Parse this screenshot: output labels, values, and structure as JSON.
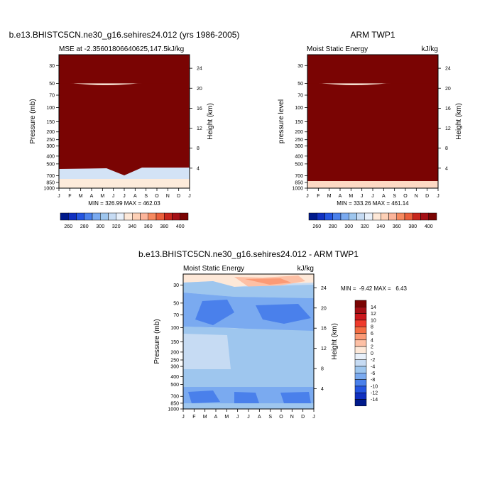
{
  "chart_data": [
    {
      "type": "heatmap",
      "title": "b.e13.BHISTC5CN.ne30_g16.sehires24.012 (yrs 1986-2005)",
      "subtitle_left": "MSE at -2.35601806640625,147.5",
      "subtitle_right": "kJ/kg",
      "ylabel": "Pressure (mb)",
      "y2label": "Height (km)",
      "x_ticks": [
        "J",
        "F",
        "M",
        "A",
        "M",
        "J",
        "J",
        "A",
        "S",
        "O",
        "N",
        "D",
        "J"
      ],
      "y_ticks": [
        30,
        50,
        70,
        100,
        150,
        200,
        250,
        300,
        400,
        500,
        700,
        850,
        1000
      ],
      "height_ticks": [
        4,
        8,
        12,
        16,
        20,
        24
      ],
      "stats": "MIN = 326.99 MAX = 462.03",
      "colorbar_ticks": [
        260,
        280,
        300,
        320,
        340,
        360,
        380,
        400
      ],
      "levels": [
        [
          700,
          "#d3e3f6"
        ],
        [
          600,
          "#fdebdb"
        ],
        [
          250,
          "#fde8d8"
        ],
        [
          150,
          "#fdd0b6"
        ],
        [
          100,
          "#fbb49a"
        ],
        [
          75,
          "#f6895f"
        ],
        [
          65,
          "#ea5f3b"
        ],
        [
          56,
          "#c7261c"
        ],
        [
          50,
          "#7a0403"
        ]
      ]
    },
    {
      "type": "heatmap",
      "title": "ARM TWP1",
      "subtitle_left": "Moist Static Energy",
      "subtitle_right": "kJ/kg",
      "ylabel": "pressure level",
      "y2label": "Height (km)",
      "x_ticks": [
        "J",
        "F",
        "M",
        "A",
        "M",
        "J",
        "J",
        "A",
        "S",
        "O",
        "N",
        "D",
        "J"
      ],
      "y_ticks": [
        30,
        50,
        70,
        100,
        150,
        200,
        250,
        300,
        400,
        500,
        700,
        850,
        1000
      ],
      "height_ticks": [
        4,
        8,
        12,
        16,
        20,
        24
      ],
      "stats": "MIN = 333.26 MAX = 461.14",
      "colorbar_ticks": [
        260,
        280,
        300,
        320,
        340,
        360,
        380,
        400
      ],
      "levels": [
        [
          850,
          "#fdd9c4"
        ],
        [
          600,
          "#fdebdb"
        ],
        [
          320,
          "#fde8d8"
        ],
        [
          160,
          "#fdd0b6"
        ],
        [
          100,
          "#fbb49a"
        ],
        [
          75,
          "#f6895f"
        ],
        [
          63,
          "#ea5f3b"
        ],
        [
          55,
          "#c7261c"
        ],
        [
          50,
          "#7a0403"
        ]
      ]
    },
    {
      "type": "heatmap",
      "title": "b.e13.BHISTC5CN.ne30_g16.sehires24.012 - ARM TWP1",
      "subtitle_left": "Moist Static Energy",
      "subtitle_right": "kJ/kg",
      "ylabel": "Pressure (mb)",
      "y2label": "Height (km)",
      "x_ticks": [
        "J",
        "F",
        "M",
        "A",
        "M",
        "J",
        "J",
        "A",
        "S",
        "O",
        "N",
        "D",
        "J"
      ],
      "y_ticks": [
        30,
        50,
        70,
        100,
        150,
        200,
        250,
        300,
        400,
        500,
        700,
        850,
        1000
      ],
      "height_ticks": [
        4,
        8,
        12,
        16,
        20,
        24
      ],
      "stats": "MIN =  -9.42 MAX =   6.43",
      "colorbar_ticks": [
        14,
        12,
        10,
        8,
        6,
        4,
        2,
        0,
        -2,
        -4,
        -6,
        -8,
        -10,
        -12,
        -14
      ],
      "colorbar_colors": [
        "#7a0403",
        "#a50f15",
        "#cb181d",
        "#ef3b2c",
        "#f46d43",
        "#fb9a76",
        "#fdc0a5",
        "#fde8d8",
        "#e8f0fa",
        "#c6dbf3",
        "#9ec6ee",
        "#7aaaf0",
        "#4a80eb",
        "#2455e0",
        "#1030c0",
        "#001a8c"
      ]
    }
  ],
  "colors": {
    "palette": [
      "#001a8c",
      "#1030c0",
      "#2455e0",
      "#4a80eb",
      "#7aaaf0",
      "#9ec6ee",
      "#c6dbf3",
      "#e8f0fa",
      "#fde8d8",
      "#fdd0b6",
      "#fbb49a",
      "#f6895f",
      "#ea5f3b",
      "#c7261c",
      "#a50f15",
      "#7a0403"
    ]
  }
}
